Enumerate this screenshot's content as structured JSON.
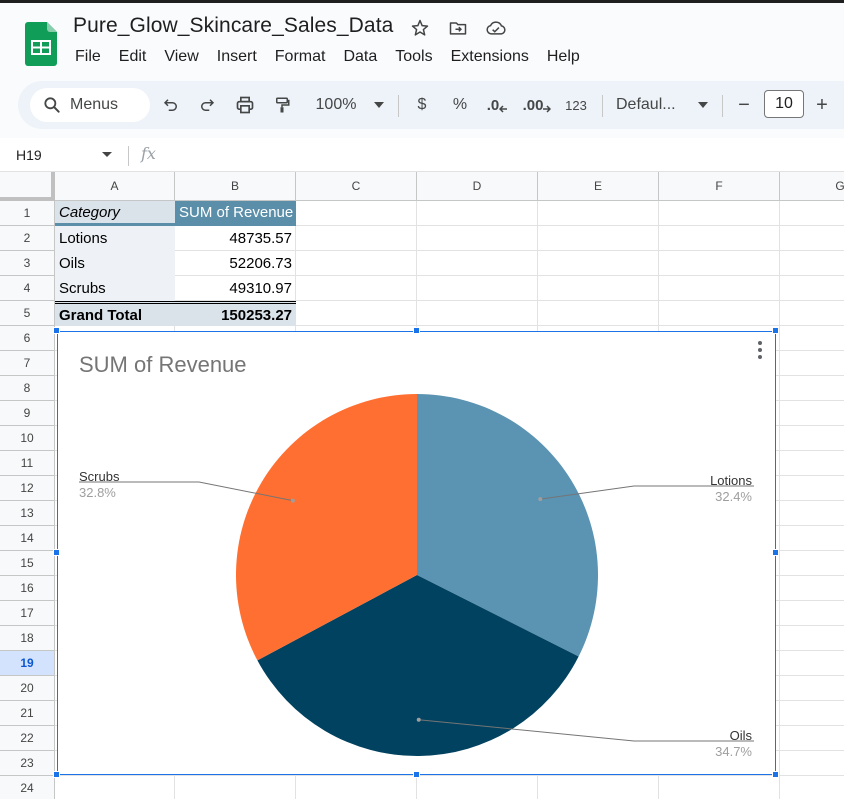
{
  "doc": {
    "title": "Pure_Glow_Skincare_Sales_Data"
  },
  "menu": [
    "File",
    "Edit",
    "View",
    "Insert",
    "Format",
    "Data",
    "Tools",
    "Extensions",
    "Help"
  ],
  "toolbar": {
    "search_label": "Menus",
    "zoom": "100%",
    "currency": "$",
    "percent": "%",
    "decrease_decimal": ".0",
    "increase_decimal": ".00",
    "number_format": "123",
    "font": "Defaul...",
    "font_size": "10",
    "minus": "−",
    "plus": "+"
  },
  "formula_bar": {
    "name_box": "H19",
    "fx": "fx"
  },
  "grid": {
    "columns": [
      "A",
      "B",
      "C",
      "D",
      "E",
      "F",
      "G"
    ],
    "rows": [
      "1",
      "2",
      "3",
      "4",
      "5",
      "6",
      "7",
      "8",
      "9",
      "10",
      "11",
      "12",
      "13",
      "14",
      "15",
      "16",
      "17",
      "18",
      "19",
      "20",
      "21",
      "22",
      "23",
      "24"
    ],
    "active_row": "19"
  },
  "pivot": {
    "header": {
      "category": "Category",
      "value": "SUM of Revenue"
    },
    "rows": [
      {
        "category": "Lotions",
        "value": "48735.57"
      },
      {
        "category": "Oils",
        "value": "52206.73"
      },
      {
        "category": "Scrubs",
        "value": "49310.97"
      }
    ],
    "total": {
      "category": "Grand Total",
      "value": "150253.27"
    }
  },
  "chart_data": {
    "type": "pie",
    "title": "SUM of Revenue",
    "categories": [
      "Lotions",
      "Oils",
      "Scrubs"
    ],
    "values": [
      48735.57,
      52206.73,
      49310.97
    ],
    "labels": [
      "32.4%",
      "34.7%",
      "32.8%"
    ],
    "colors": [
      "#5b93b2",
      "#00425f",
      "#ff6f31"
    ],
    "legend": "none"
  }
}
